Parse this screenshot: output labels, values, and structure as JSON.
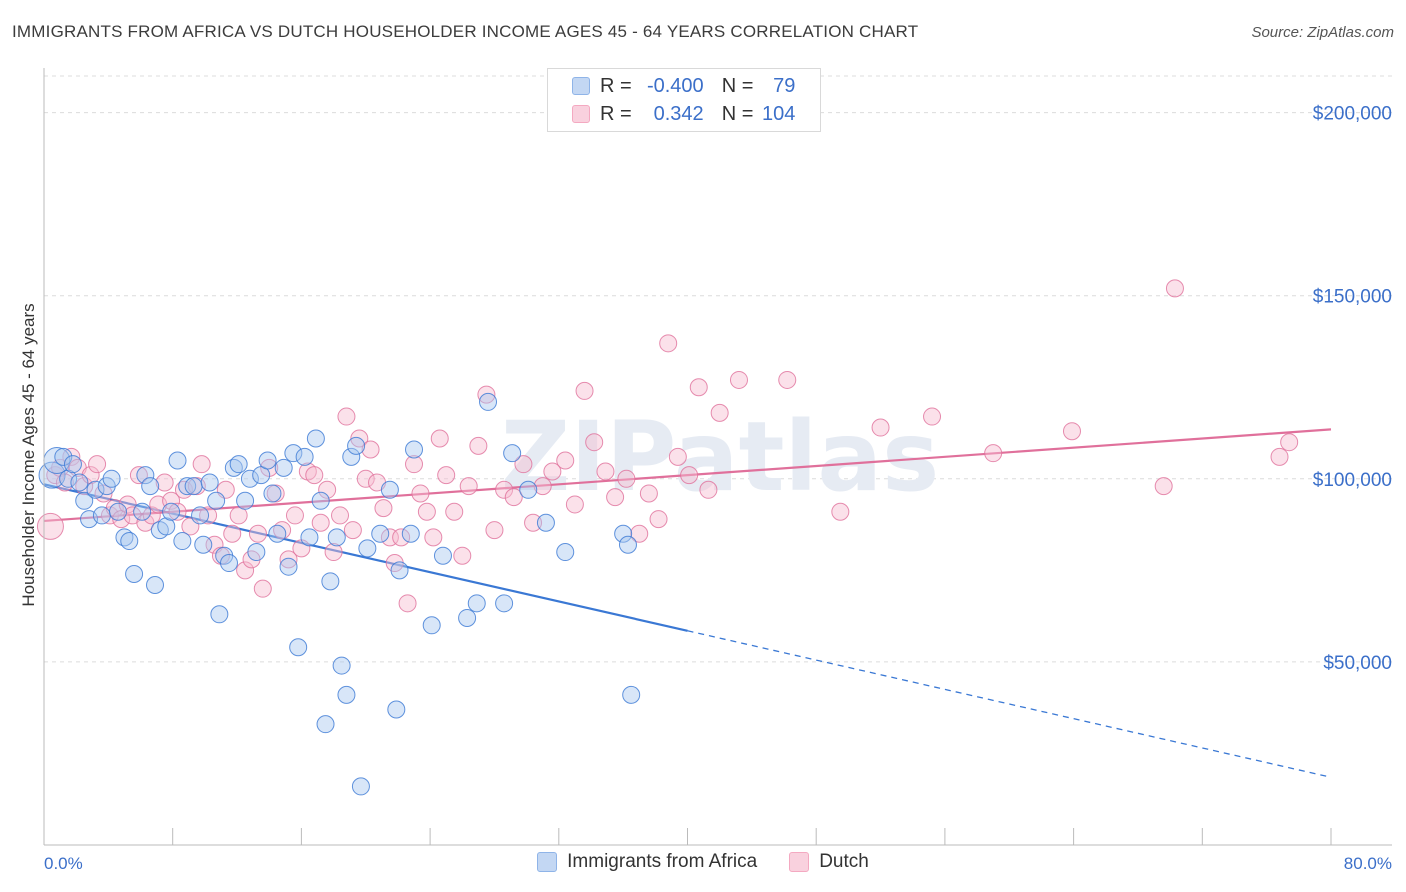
{
  "header": {
    "title": "IMMIGRANTS FROM AFRICA VS DUTCH HOUSEHOLDER INCOME AGES 45 - 64 YEARS CORRELATION CHART",
    "source": "Source: ZipAtlas.com"
  },
  "watermark": "ZIPatlas",
  "legend_top": {
    "rows": [
      {
        "r_label": "R =",
        "r_value": "-0.400",
        "n_label": "N =",
        "n_value": "79",
        "color": "#8fb4e8"
      },
      {
        "r_label": "R =",
        "r_value": "0.342",
        "n_label": "N =",
        "n_value": "104",
        "color": "#f4a9c1"
      }
    ]
  },
  "legend_bottom": [
    {
      "label": "Immigrants from Africa",
      "color": "#8fb4e8"
    },
    {
      "label": "Dutch",
      "color": "#f4a9c1"
    }
  ],
  "chart_data": {
    "type": "scatter",
    "ylabel": "Householder Income Ages 45 - 64 years",
    "xlabel": "",
    "xlim": [
      0,
      80
    ],
    "ylim": [
      0,
      210000
    ],
    "x_tick_labels": [
      "0.0%",
      "80.0%"
    ],
    "y_ticks": [
      50000,
      100000,
      150000,
      200000
    ],
    "y_tick_labels": [
      "$50,000",
      "$100,000",
      "$150,000",
      "$200,000"
    ],
    "series": [
      {
        "name": "Immigrants from Africa",
        "color": "#3a78d4",
        "fill": "#a9c7ef",
        "r": -0.4,
        "n": 79,
        "trend": {
          "x0": 0,
          "y0": 98500,
          "x1": 40,
          "y1": 58500,
          "dash_to_x": 80,
          "dash_to_y": 18500
        },
        "points": [
          [
            0.5,
            101000
          ],
          [
            0.8,
            105000
          ],
          [
            1.2,
            106000
          ],
          [
            1.5,
            100000
          ],
          [
            1.8,
            104000
          ],
          [
            2.2,
            99000
          ],
          [
            2.5,
            94000
          ],
          [
            2.8,
            89000
          ],
          [
            3.2,
            97000
          ],
          [
            3.6,
            90000
          ],
          [
            3.9,
            98000
          ],
          [
            4.2,
            100000
          ],
          [
            4.6,
            91000
          ],
          [
            5.0,
            84000
          ],
          [
            5.3,
            83000
          ],
          [
            5.6,
            74000
          ],
          [
            6.1,
            91000
          ],
          [
            6.3,
            101000
          ],
          [
            6.6,
            98000
          ],
          [
            6.9,
            71000
          ],
          [
            7.2,
            86000
          ],
          [
            7.6,
            87000
          ],
          [
            7.9,
            91000
          ],
          [
            8.3,
            105000
          ],
          [
            8.6,
            83000
          ],
          [
            8.9,
            98000
          ],
          [
            9.3,
            98000
          ],
          [
            9.7,
            90000
          ],
          [
            9.9,
            82000
          ],
          [
            10.3,
            99000
          ],
          [
            10.7,
            94000
          ],
          [
            10.9,
            63000
          ],
          [
            11.2,
            79000
          ],
          [
            11.5,
            77000
          ],
          [
            11.8,
            103000
          ],
          [
            12.1,
            104000
          ],
          [
            12.5,
            94000
          ],
          [
            12.8,
            100000
          ],
          [
            13.2,
            80000
          ],
          [
            13.5,
            101000
          ],
          [
            13.9,
            105000
          ],
          [
            14.2,
            96000
          ],
          [
            14.5,
            85000
          ],
          [
            14.9,
            103000
          ],
          [
            15.2,
            76000
          ],
          [
            15.5,
            107000
          ],
          [
            15.8,
            54000
          ],
          [
            16.2,
            106000
          ],
          [
            16.5,
            84000
          ],
          [
            16.9,
            111000
          ],
          [
            17.2,
            94000
          ],
          [
            17.5,
            33000
          ],
          [
            17.8,
            72000
          ],
          [
            18.2,
            84000
          ],
          [
            18.5,
            49000
          ],
          [
            18.8,
            41000
          ],
          [
            19.1,
            106000
          ],
          [
            19.4,
            109000
          ],
          [
            19.7,
            16000
          ],
          [
            20.1,
            81000
          ],
          [
            20.9,
            85000
          ],
          [
            21.5,
            97000
          ],
          [
            21.9,
            37000
          ],
          [
            22.1,
            75000
          ],
          [
            22.8,
            85000
          ],
          [
            23.0,
            108000
          ],
          [
            24.1,
            60000
          ],
          [
            24.8,
            79000
          ],
          [
            26.3,
            62000
          ],
          [
            26.9,
            66000
          ],
          [
            27.6,
            121000
          ],
          [
            28.6,
            66000
          ],
          [
            29.1,
            107000
          ],
          [
            30.1,
            97000
          ],
          [
            31.2,
            88000
          ],
          [
            32.4,
            80000
          ],
          [
            36.0,
            85000
          ],
          [
            36.3,
            82000
          ],
          [
            36.5,
            41000
          ]
        ]
      },
      {
        "name": "Dutch",
        "color": "#e0709b",
        "fill": "#f7bcd0",
        "r": 0.342,
        "n": 104,
        "trend": {
          "x0": 0,
          "y0": 88500,
          "x1": 80,
          "y1": 113500
        },
        "points": [
          [
            0.4,
            87000
          ],
          [
            0.7,
            101000
          ],
          [
            1.0,
            103000
          ],
          [
            1.3,
            99000
          ],
          [
            1.7,
            106000
          ],
          [
            2.1,
            103000
          ],
          [
            2.5,
            98000
          ],
          [
            2.9,
            101000
          ],
          [
            3.3,
            104000
          ],
          [
            3.7,
            96000
          ],
          [
            4.1,
            90000
          ],
          [
            4.4,
            92000
          ],
          [
            4.8,
            89000
          ],
          [
            5.2,
            93000
          ],
          [
            5.5,
            90000
          ],
          [
            5.9,
            101000
          ],
          [
            6.3,
            88000
          ],
          [
            6.7,
            90000
          ],
          [
            7.1,
            93000
          ],
          [
            7.5,
            99000
          ],
          [
            7.9,
            94000
          ],
          [
            8.3,
            91000
          ],
          [
            8.7,
            97000
          ],
          [
            9.1,
            87000
          ],
          [
            9.5,
            98000
          ],
          [
            9.8,
            104000
          ],
          [
            10.2,
            90000
          ],
          [
            10.6,
            82000
          ],
          [
            11.0,
            79000
          ],
          [
            11.3,
            97000
          ],
          [
            11.7,
            85000
          ],
          [
            12.1,
            90000
          ],
          [
            12.5,
            75000
          ],
          [
            12.9,
            78000
          ],
          [
            13.3,
            85000
          ],
          [
            13.6,
            70000
          ],
          [
            14.0,
            103000
          ],
          [
            14.4,
            96000
          ],
          [
            14.8,
            86000
          ],
          [
            15.2,
            78000
          ],
          [
            15.6,
            90000
          ],
          [
            16.0,
            81000
          ],
          [
            16.4,
            102000
          ],
          [
            16.8,
            101000
          ],
          [
            17.2,
            88000
          ],
          [
            17.6,
            97000
          ],
          [
            18.0,
            80000
          ],
          [
            18.4,
            90000
          ],
          [
            18.8,
            117000
          ],
          [
            19.2,
            86000
          ],
          [
            19.6,
            111000
          ],
          [
            20.0,
            100000
          ],
          [
            20.3,
            108000
          ],
          [
            20.7,
            99000
          ],
          [
            21.1,
            92000
          ],
          [
            21.5,
            84000
          ],
          [
            21.8,
            77000
          ],
          [
            22.2,
            84000
          ],
          [
            22.6,
            66000
          ],
          [
            23.0,
            104000
          ],
          [
            23.4,
            96000
          ],
          [
            23.8,
            91000
          ],
          [
            24.2,
            84000
          ],
          [
            24.6,
            111000
          ],
          [
            25.0,
            101000
          ],
          [
            25.5,
            91000
          ],
          [
            26.0,
            79000
          ],
          [
            26.4,
            98000
          ],
          [
            27.0,
            109000
          ],
          [
            27.5,
            123000
          ],
          [
            28.0,
            86000
          ],
          [
            28.6,
            97000
          ],
          [
            29.2,
            95000
          ],
          [
            29.8,
            104000
          ],
          [
            30.4,
            88000
          ],
          [
            31.0,
            98000
          ],
          [
            31.6,
            102000
          ],
          [
            32.4,
            105000
          ],
          [
            33.0,
            93000
          ],
          [
            33.6,
            124000
          ],
          [
            34.2,
            110000
          ],
          [
            34.9,
            102000
          ],
          [
            35.5,
            95000
          ],
          [
            36.2,
            100000
          ],
          [
            37.0,
            85000
          ],
          [
            37.6,
            96000
          ],
          [
            38.2,
            89000
          ],
          [
            38.8,
            137000
          ],
          [
            39.4,
            106000
          ],
          [
            40.1,
            101000
          ],
          [
            40.7,
            125000
          ],
          [
            41.3,
            97000
          ],
          [
            42.0,
            118000
          ],
          [
            43.2,
            127000
          ],
          [
            46.2,
            127000
          ],
          [
            49.5,
            91000
          ],
          [
            52.0,
            114000
          ],
          [
            55.2,
            117000
          ],
          [
            59.0,
            107000
          ],
          [
            63.9,
            113000
          ],
          [
            69.6,
            98000
          ],
          [
            70.3,
            152000
          ],
          [
            76.8,
            106000
          ],
          [
            77.4,
            110000
          ]
        ]
      }
    ]
  }
}
